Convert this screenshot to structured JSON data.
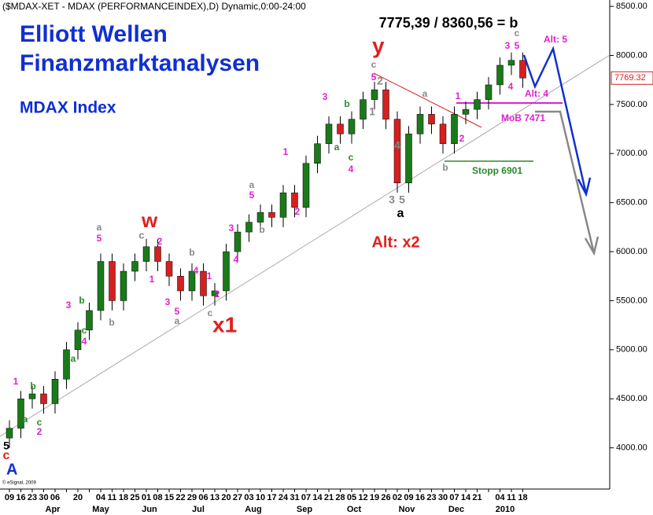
{
  "chart_data": {
    "type": "candlestick",
    "header": "($MDAX-XET - MDAX (PERFORMANCEINDEX),D) Dynamic,0:00-24:00",
    "title": "Elliott Wellen",
    "subtitle": "Finanzmarktanalysen",
    "index_name": "MDAX Index",
    "copyright": "© eSignal, 2009",
    "categories": [
      "09",
      "16",
      "23",
      "30",
      "06",
      null,
      "20",
      null,
      "04",
      "11",
      "18",
      "25",
      "01",
      "08",
      "15",
      "22",
      "29",
      "06",
      "13",
      "20",
      "27",
      "03",
      "10",
      "17",
      "24",
      "31",
      "07",
      "14",
      "21",
      "28",
      "05",
      "12",
      "19",
      "26",
      "02",
      "09",
      "16",
      "23",
      "30",
      "07",
      "14",
      "21",
      null,
      "04",
      "11",
      "18"
    ],
    "months": [
      "Apr",
      "May",
      "Jun",
      "Jul",
      "Aug",
      "Sep",
      "Oct",
      "Nov",
      "Dec",
      "2010"
    ],
    "open": [
      4100,
      4200,
      4500,
      4550,
      4450,
      4700,
      5000,
      5200,
      5400,
      5900,
      5500,
      5800,
      5900,
      6050,
      5900,
      5750,
      5600,
      5800,
      5550,
      5600,
      6000,
      6200,
      6300,
      6400,
      6350,
      6600,
      6450,
      6900,
      7100,
      7300,
      7200,
      7350,
      7550,
      7650,
      7350,
      6700,
      7200,
      7400,
      7300,
      7100,
      7400,
      7450,
      7550,
      7700,
      7900,
      7950
    ],
    "high": [
      4280,
      4580,
      4630,
      4630,
      4780,
      5080,
      5280,
      5480,
      5980,
      5980,
      5880,
      5980,
      6130,
      6130,
      5980,
      5830,
      5880,
      5880,
      5680,
      6080,
      6280,
      6380,
      6480,
      6480,
      6680,
      6680,
      6980,
      7180,
      7380,
      7380,
      7430,
      7630,
      7730,
      7730,
      7430,
      7280,
      7480,
      7480,
      7380,
      7480,
      7530,
      7630,
      7780,
      7980,
      8030,
      8030
    ],
    "low": [
      4000,
      4100,
      4400,
      4350,
      4350,
      4600,
      4900,
      5100,
      5300,
      5400,
      5400,
      5700,
      5800,
      5800,
      5650,
      5500,
      5500,
      5450,
      5450,
      5500,
      5900,
      6100,
      6200,
      6250,
      6250,
      6350,
      6350,
      6800,
      7000,
      7100,
      7100,
      7250,
      7450,
      7250,
      6600,
      6600,
      7100,
      7200,
      7000,
      7000,
      7300,
      7350,
      7450,
      7600,
      7800,
      7670
    ],
    "close": [
      4200,
      4500,
      4550,
      4450,
      4700,
      5000,
      5200,
      5400,
      5900,
      5500,
      5800,
      5900,
      6050,
      5900,
      5750,
      5600,
      5800,
      5550,
      5600,
      6000,
      6200,
      6300,
      6400,
      6350,
      6600,
      6450,
      6900,
      7100,
      7300,
      7200,
      7350,
      7550,
      7650,
      7350,
      6700,
      7200,
      7400,
      7300,
      7100,
      7400,
      7450,
      7550,
      7700,
      7900,
      7950,
      7770
    ],
    "up_color": "#1a7a1a",
    "down_color": "#d42020",
    "last_price": {
      "value": 7769.32,
      "label": "7769.32"
    },
    "ylim": [
      3580,
      8565
    ],
    "yticks": [
      {
        "value": 4000,
        "label": "4000.00"
      },
      {
        "value": 4500,
        "label": "4500.00"
      },
      {
        "value": 5000,
        "label": "5000.00"
      },
      {
        "value": 5500,
        "label": "5500.00"
      },
      {
        "value": 6000,
        "label": "6000.00"
      },
      {
        "value": 6500,
        "label": "6500.00"
      },
      {
        "value": 7000,
        "label": "7000.00"
      },
      {
        "value": 7500,
        "label": "7500.00"
      },
      {
        "value": 8000,
        "label": "8000.00"
      },
      {
        "value": 8500,
        "label": "8500.00"
      }
    ],
    "annotations": [
      {
        "text": "5",
        "color": "#000000"
      },
      {
        "text": "c",
        "color": "#e02020"
      },
      {
        "text": "A",
        "color": "#1030d0"
      },
      {
        "text": "1",
        "color": "#e020d0"
      },
      {
        "text": "b",
        "color": "#2a8a2a"
      },
      {
        "text": "a",
        "color": "#2a8a2a"
      },
      {
        "text": "c",
        "color": "#2a8a2a"
      },
      {
        "text": "2",
        "color": "#e020d0"
      },
      {
        "text": "3",
        "color": "#e020d0"
      },
      {
        "text": "b",
        "color": "#2a8a2a"
      },
      {
        "text": "c",
        "color": "#2a8a2a"
      },
      {
        "text": "4",
        "color": "#e020d0"
      },
      {
        "text": "a",
        "color": "#2a8a2a"
      },
      {
        "text": "a",
        "color": "#888888"
      },
      {
        "text": "5",
        "color": "#e020d0"
      },
      {
        "text": "b",
        "color": "#888888"
      },
      {
        "text": "w",
        "color": "#e02020"
      },
      {
        "text": "c",
        "color": "#888888"
      },
      {
        "text": "2",
        "color": "#e020d0"
      },
      {
        "text": "1",
        "color": "#e020d0"
      },
      {
        "text": "3",
        "color": "#e020d0"
      },
      {
        "text": "4",
        "color": "#e020d0"
      },
      {
        "text": "5",
        "color": "#e020d0"
      },
      {
        "text": "a",
        "color": "#888888"
      },
      {
        "text": "b",
        "color": "#888888"
      },
      {
        "text": "1",
        "color": "#e020d0"
      },
      {
        "text": "2",
        "color": "#e020d0"
      },
      {
        "text": "c",
        "color": "#888888"
      },
      {
        "text": "x1",
        "color": "#e02020"
      },
      {
        "text": "3",
        "color": "#e020d0"
      },
      {
        "text": "4",
        "color": "#e020d0"
      },
      {
        "text": "a",
        "color": "#888888"
      },
      {
        "text": "5",
        "color": "#e020d0"
      },
      {
        "text": "b",
        "color": "#888888"
      },
      {
        "text": "1",
        "color": "#e020d0"
      },
      {
        "text": "2",
        "color": "#e020d0"
      },
      {
        "text": "3",
        "color": "#e020d0"
      },
      {
        "text": "b",
        "color": "#2a8a2a"
      },
      {
        "text": "a",
        "color": "#2a8a2a"
      },
      {
        "text": "c",
        "color": "#2a8a2a"
      },
      {
        "text": "4",
        "color": "#e020d0"
      },
      {
        "text": "y",
        "color": "#e02020"
      },
      {
        "text": "c",
        "color": "#888888"
      },
      {
        "text": "5",
        "color": "#e020d0"
      },
      {
        "text": "2",
        "color": "#888888"
      },
      {
        "text": "1",
        "color": "#888888"
      },
      {
        "text": "4",
        "color": "#888888"
      },
      {
        "text": "3",
        "color": "#888888"
      },
      {
        "text": "5",
        "color": "#888888"
      },
      {
        "text": "a",
        "color": "#000000"
      },
      {
        "text": "a",
        "color": "#888888"
      },
      {
        "text": "b",
        "color": "#888888"
      },
      {
        "text": "1",
        "color": "#e020d0"
      },
      {
        "text": "2",
        "color": "#e020d0"
      },
      {
        "text": "7775,39 / 8360,56 = b",
        "color": "#000000"
      },
      {
        "text": "c",
        "color": "#888888"
      },
      {
        "text": "3",
        "color": "#e020d0"
      },
      {
        "text": "5",
        "color": "#e020d0"
      },
      {
        "text": "4",
        "color": "#e020d0"
      },
      {
        "text": "Alt: 5",
        "color": "#e020d0"
      },
      {
        "text": "Alt: 4",
        "color": "#e020d0"
      },
      {
        "text": "MoB 7471",
        "color": "#e020d0"
      },
      {
        "text": "Stopp 6901",
        "color": "#2a8a2a"
      },
      {
        "text": "Alt: x2",
        "color": "#e02020"
      }
    ]
  }
}
